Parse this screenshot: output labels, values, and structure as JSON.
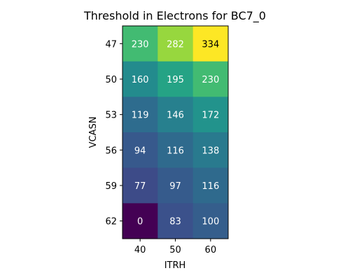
{
  "chart_data": {
    "type": "heatmap",
    "title": "Threshold in Electrons for BC7_0",
    "xlabel": "ITRH",
    "ylabel": "VCASN",
    "x_categories": [
      "40",
      "50",
      "60"
    ],
    "y_categories": [
      "47",
      "50",
      "53",
      "56",
      "59",
      "62"
    ],
    "values": [
      [
        230,
        282,
        334
      ],
      [
        160,
        195,
        230
      ],
      [
        119,
        146,
        172
      ],
      [
        94,
        116,
        138
      ],
      [
        77,
        97,
        116
      ],
      [
        0,
        83,
        100
      ]
    ],
    "colormap": "viridis",
    "value_range": [
      0,
      334
    ],
    "grid": false
  }
}
